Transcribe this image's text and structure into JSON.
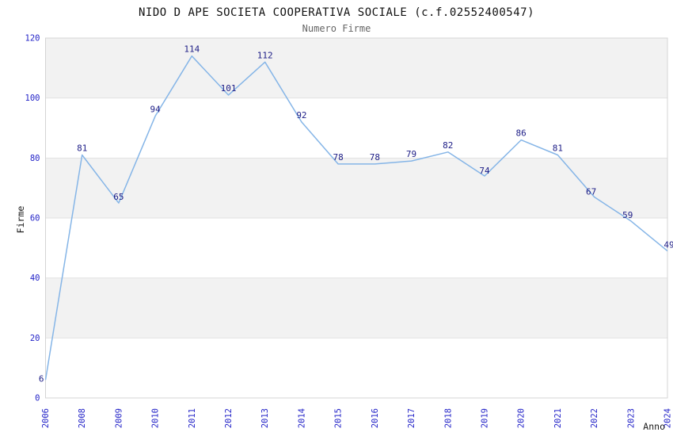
{
  "chart_data": {
    "type": "line",
    "title": "NIDO D APE SOCIETA COOPERATIVA SOCIALE (c.f.02552400547)",
    "subtitle": "Numero Firme",
    "xlabel": "Anno",
    "ylabel": "Firme",
    "categories": [
      "2006",
      "2008",
      "2009",
      "2010",
      "2011",
      "2012",
      "2013",
      "2014",
      "2015",
      "2016",
      "2017",
      "2018",
      "2019",
      "2020",
      "2021",
      "2022",
      "2023",
      "2024"
    ],
    "values": [
      6,
      81,
      65,
      94,
      114,
      101,
      112,
      92,
      78,
      78,
      79,
      82,
      74,
      86,
      81,
      67,
      59,
      49
    ],
    "ylim": [
      0,
      120
    ],
    "yticks": [
      0,
      20,
      40,
      60,
      80,
      100,
      120
    ],
    "grid": "alternating-horizontal-bands",
    "legend": "none",
    "colors": {
      "line": "#85B5E7",
      "value_label": "#1C1C86",
      "tick_label": "#2424C8",
      "band": "#F2F2F2",
      "gridline": "#E2E2E2",
      "plot_border": "#D4D4D4",
      "title": "#111111",
      "subtitle": "#666666",
      "axis_label": "#1A1A1A",
      "background": "#FFFFFF"
    }
  }
}
